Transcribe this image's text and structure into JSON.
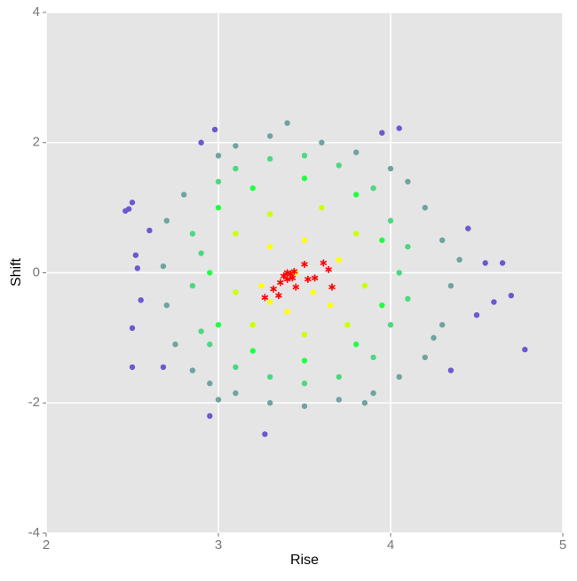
{
  "chart_data": {
    "type": "scatter",
    "x_label": "Rise",
    "y_label": "Shift",
    "xlim": [
      2,
      5
    ],
    "ylim": [
      -4,
      4
    ],
    "xticks": [
      2,
      3,
      4,
      5
    ],
    "yticks": [
      -4,
      -2,
      0,
      2,
      4
    ],
    "grid": true,
    "series": [
      {
        "color": "#6a5acd",
        "marker": "circle",
        "x": [
          2.46,
          2.48,
          2.5,
          2.5,
          2.5,
          2.52,
          2.53,
          2.55,
          2.9,
          2.98,
          3.27,
          3.95,
          4.05,
          4.45,
          4.55,
          4.7,
          4.78,
          4.65,
          2.95,
          4.6,
          4.5,
          4.35,
          2.68,
          2.6
        ],
        "y": [
          0.95,
          0.98,
          1.08,
          -0.85,
          -1.45,
          0.27,
          0.07,
          -0.42,
          2.0,
          2.2,
          -2.48,
          2.15,
          2.22,
          0.68,
          0.15,
          -0.35,
          -1.18,
          0.15,
          -2.2,
          -0.45,
          -0.65,
          -1.5,
          -1.45,
          0.65
        ]
      },
      {
        "color": "#6fa3a0",
        "marker": "circle",
        "x": [
          2.7,
          2.75,
          2.8,
          2.85,
          3.0,
          3.1,
          3.3,
          3.4,
          3.6,
          3.8,
          4.0,
          4.1,
          4.2,
          4.3,
          4.35,
          4.3,
          4.2,
          4.05,
          3.9,
          3.7,
          3.5,
          3.3,
          3.1,
          2.95,
          2.7,
          2.68,
          4.4,
          4.25,
          3.0,
          3.85
        ],
        "y": [
          0.8,
          -1.1,
          1.2,
          -1.5,
          1.8,
          1.95,
          2.1,
          2.3,
          2.0,
          1.85,
          1.6,
          1.4,
          1.0,
          0.5,
          -0.2,
          -0.8,
          -1.3,
          -1.6,
          -1.85,
          -1.95,
          -2.05,
          -2.0,
          -1.85,
          -1.7,
          -0.5,
          0.1,
          0.2,
          -1.0,
          -1.95,
          -2.0
        ]
      },
      {
        "color": "#4cd880",
        "marker": "circle",
        "x": [
          2.85,
          2.9,
          3.0,
          3.1,
          3.3,
          3.5,
          3.7,
          3.9,
          4.0,
          4.05,
          4.0,
          3.9,
          3.7,
          3.5,
          3.3,
          3.1,
          2.95,
          2.85,
          2.9,
          4.1,
          4.1
        ],
        "y": [
          0.6,
          -0.9,
          1.4,
          1.6,
          1.75,
          1.8,
          1.65,
          1.3,
          0.8,
          0.0,
          -0.8,
          -1.3,
          -1.6,
          -1.7,
          -1.6,
          -1.45,
          -1.1,
          -0.2,
          0.3,
          0.4,
          -0.4
        ]
      },
      {
        "color": "#22ff44",
        "marker": "circle",
        "x": [
          3.0,
          3.2,
          3.5,
          3.8,
          3.95,
          3.95,
          3.8,
          3.5,
          3.2,
          3.0,
          2.95
        ],
        "y": [
          1.0,
          1.3,
          1.45,
          1.2,
          0.5,
          -0.5,
          -1.1,
          -1.35,
          -1.2,
          -0.8,
          0.0
        ]
      },
      {
        "color": "#ccff00",
        "marker": "circle",
        "x": [
          3.1,
          3.3,
          3.6,
          3.8,
          3.85,
          3.75,
          3.5,
          3.2,
          3.1
        ],
        "y": [
          0.6,
          0.9,
          1.0,
          0.6,
          -0.2,
          -0.8,
          -0.95,
          -0.8,
          -0.3
        ]
      },
      {
        "color": "#ffff00",
        "marker": "circle",
        "x": [
          3.3,
          3.5,
          3.7,
          3.65,
          3.4,
          3.25,
          3.45,
          3.55,
          3.3
        ],
        "y": [
          0.4,
          0.5,
          0.2,
          -0.5,
          -0.6,
          -0.2,
          0.0,
          -0.3,
          -0.45
        ]
      },
      {
        "color": "#ff0000",
        "marker": "star",
        "x": [
          3.27,
          3.32,
          3.35,
          3.36,
          3.38,
          3.4,
          3.42,
          3.43,
          3.44,
          3.45,
          3.5,
          3.52,
          3.56,
          3.61,
          3.64,
          3.66,
          3.4
        ],
        "y": [
          -0.38,
          -0.25,
          -0.35,
          -0.15,
          -0.05,
          -0.1,
          -0.02,
          -0.08,
          0.02,
          -0.22,
          0.13,
          -0.1,
          -0.08,
          0.15,
          0.05,
          -0.22,
          0.0
        ]
      }
    ]
  }
}
